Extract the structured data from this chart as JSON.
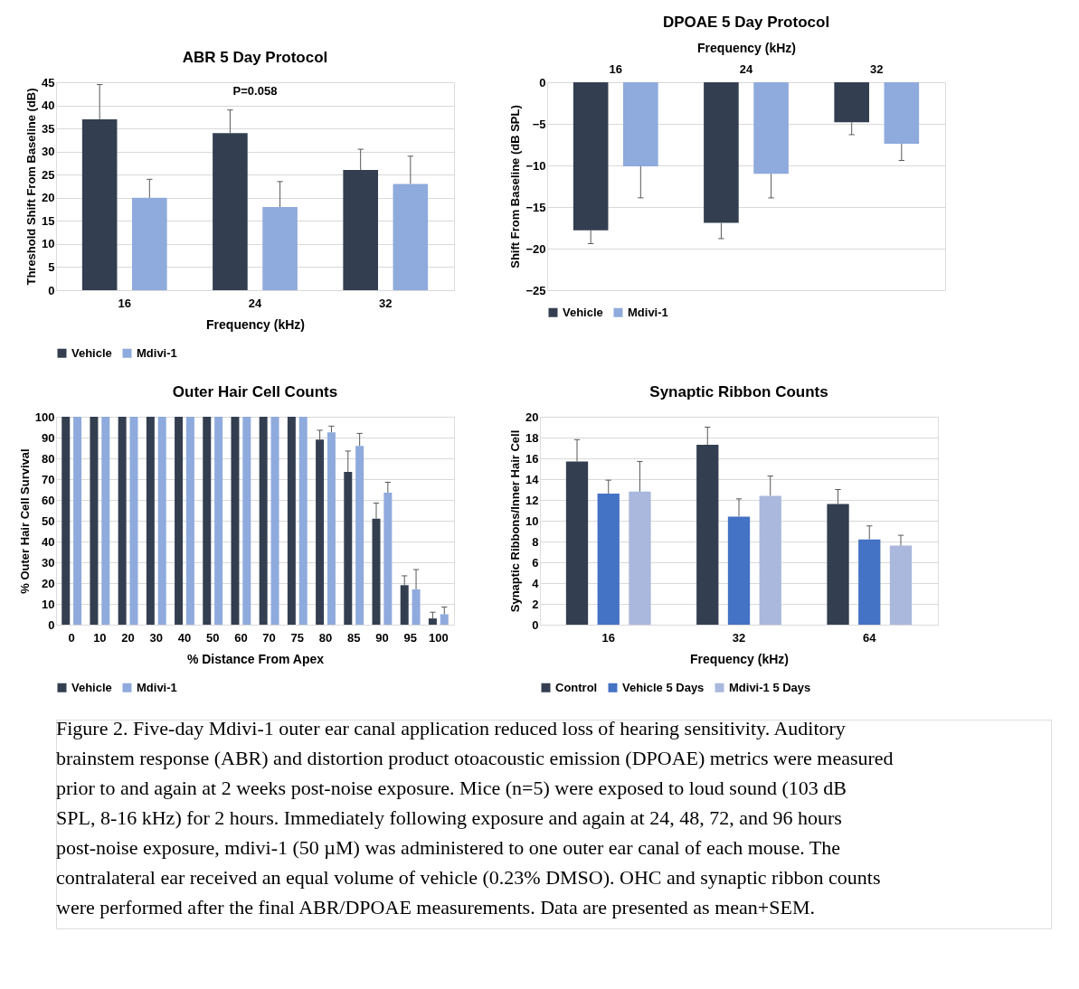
{
  "chart_data": [
    {
      "type": "bar",
      "title": "ABR 5 Day Protocol",
      "xlabel": "Frequency (kHz)",
      "ylabel": "Threshold Shift From Baseline (dB)",
      "categories": [
        "16",
        "24",
        "32"
      ],
      "ylim": [
        0,
        45
      ],
      "yticks": [
        0,
        5,
        10,
        15,
        20,
        25,
        30,
        35,
        40,
        45
      ],
      "grid": "y",
      "legend": "bottom",
      "series": [
        {
          "name": "Vehicle",
          "color": "#333f50",
          "values": [
            37,
            34,
            26
          ],
          "errors": [
            [
              37,
              44.5
            ],
            [
              34,
              39
            ],
            [
              26,
              30.5
            ]
          ]
        },
        {
          "name": "Mdivi-1",
          "color": "#8faadc",
          "values": [
            20,
            18,
            23
          ],
          "errors": [
            [
              20,
              24
            ],
            [
              18,
              23.5
            ],
            [
              23,
              29
            ]
          ]
        }
      ],
      "annotations": [
        "P=0.058"
      ]
    },
    {
      "type": "bar",
      "title": "DPOAE 5 Day Protocol",
      "xlabel": "Frequency (kHz)",
      "ylabel": "Shift From Baseline (dB SPL)",
      "categories": [
        "16",
        "24",
        "32"
      ],
      "ylim": [
        -25,
        0
      ],
      "yticks": [
        -25,
        -20,
        -15,
        -10,
        -5,
        0
      ],
      "grid": "y",
      "legend": "bottom",
      "series": [
        {
          "name": "Vehicle",
          "color": "#333f50",
          "values": [
            -17.8,
            -16.9,
            -4.8
          ],
          "errors": [
            [
              -19.4,
              -17.8
            ],
            [
              -18.8,
              -16.9
            ],
            [
              -6.3,
              -4.8
            ]
          ]
        },
        {
          "name": "Mdivi-1",
          "color": "#8faadc",
          "values": [
            -10.1,
            -11,
            -7.4
          ],
          "errors": [
            [
              -13.9,
              -10.1
            ],
            [
              -13.9,
              -11
            ],
            [
              -9.4,
              -7.4
            ]
          ]
        }
      ]
    },
    {
      "type": "bar",
      "title": "Outer Hair Cell Counts",
      "xlabel": "% Distance From Apex",
      "ylabel": "% Outer Hair Cell Survival",
      "categories": [
        "0",
        "10",
        "20",
        "30",
        "40",
        "50",
        "60",
        "70",
        "75",
        "80",
        "85",
        "90",
        "95",
        "100"
      ],
      "ylim": [
        0,
        100
      ],
      "yticks": [
        0,
        10,
        20,
        30,
        40,
        50,
        60,
        70,
        80,
        90,
        100
      ],
      "grid": "y",
      "legend": "bottom",
      "series": [
        {
          "name": "Vehicle",
          "color": "#333f50",
          "values": [
            100,
            100,
            100,
            100,
            100,
            100,
            100,
            100,
            100,
            89,
            73.5,
            51,
            19,
            3
          ],
          "errors": [
            null,
            null,
            null,
            null,
            null,
            null,
            null,
            null,
            null,
            [
              89,
              93.5
            ],
            [
              73.5,
              83.5
            ],
            [
              51,
              58.5
            ],
            [
              19,
              23.5
            ],
            [
              3,
              6
            ]
          ]
        },
        {
          "name": "Mdivi-1",
          "color": "#8faadc",
          "values": [
            100,
            100,
            100,
            100,
            100,
            100,
            100,
            100,
            100,
            92.5,
            86,
            63.5,
            17,
            5
          ],
          "errors": [
            null,
            null,
            null,
            null,
            null,
            null,
            null,
            null,
            null,
            [
              92.5,
              95.5
            ],
            [
              86,
              92
            ],
            [
              63.5,
              68.5
            ],
            [
              17,
              26.5
            ],
            [
              5,
              8.5
            ]
          ]
        }
      ]
    },
    {
      "type": "bar",
      "title": "Synaptic Ribbon Counts",
      "xlabel": "Frequency (kHz)",
      "ylabel": "Synaptic Ribbons/Inner Hair Cell",
      "categories": [
        "16",
        "32",
        "64"
      ],
      "ylim": [
        0,
        20
      ],
      "yticks": [
        0,
        2,
        4,
        6,
        8,
        10,
        12,
        14,
        16,
        18,
        20
      ],
      "grid": "y",
      "legend": "bottom",
      "series": [
        {
          "name": "Control",
          "color": "#333f50",
          "values": [
            15.7,
            17.3,
            11.6
          ],
          "errors": [
            [
              15.7,
              17.8
            ],
            [
              17.3,
              19
            ],
            [
              11.6,
              13
            ]
          ]
        },
        {
          "name": "Vehicle 5 Days",
          "color": "#4472c4",
          "values": [
            12.6,
            10.4,
            8.2
          ],
          "errors": [
            [
              12.6,
              13.9
            ],
            [
              10.4,
              12.1
            ],
            [
              8.2,
              9.5
            ]
          ]
        },
        {
          "name": "Mdivi-1 5 Days",
          "color": "#a9b8dc",
          "values": [
            12.8,
            12.4,
            7.6
          ],
          "errors": [
            [
              12.8,
              15.7
            ],
            [
              12.4,
              14.3
            ],
            [
              7.6,
              8.6
            ]
          ]
        }
      ]
    },
    {
      "type": "other",
      "annotations": [
        "Figure 2. Five-day Mdivi-1 outer ear canal application reduced loss of hearing sensitivity. Auditory brainstem response (ABR) and distortion product otoacoustic emission (DPOAE) metrics were measured prior to and again at 2 weeks post-noise exposure. Mice (n=5) were exposed to loud sound (103 dB SPL, 8-16 kHz) for 2 hours. Immediately following exposure and again at 24, 48, 72, and 96 hours post-noise exposure, mdivi-1 (50 µM) was administered to one outer ear canal of each mouse. The contralateral ear received an equal volume of vehicle (0.23% DMSO). OHC and synaptic ribbon counts were performed after the final ABR/DPOAE measurements. Data are presented as mean+SEM."
      ]
    }
  ]
}
